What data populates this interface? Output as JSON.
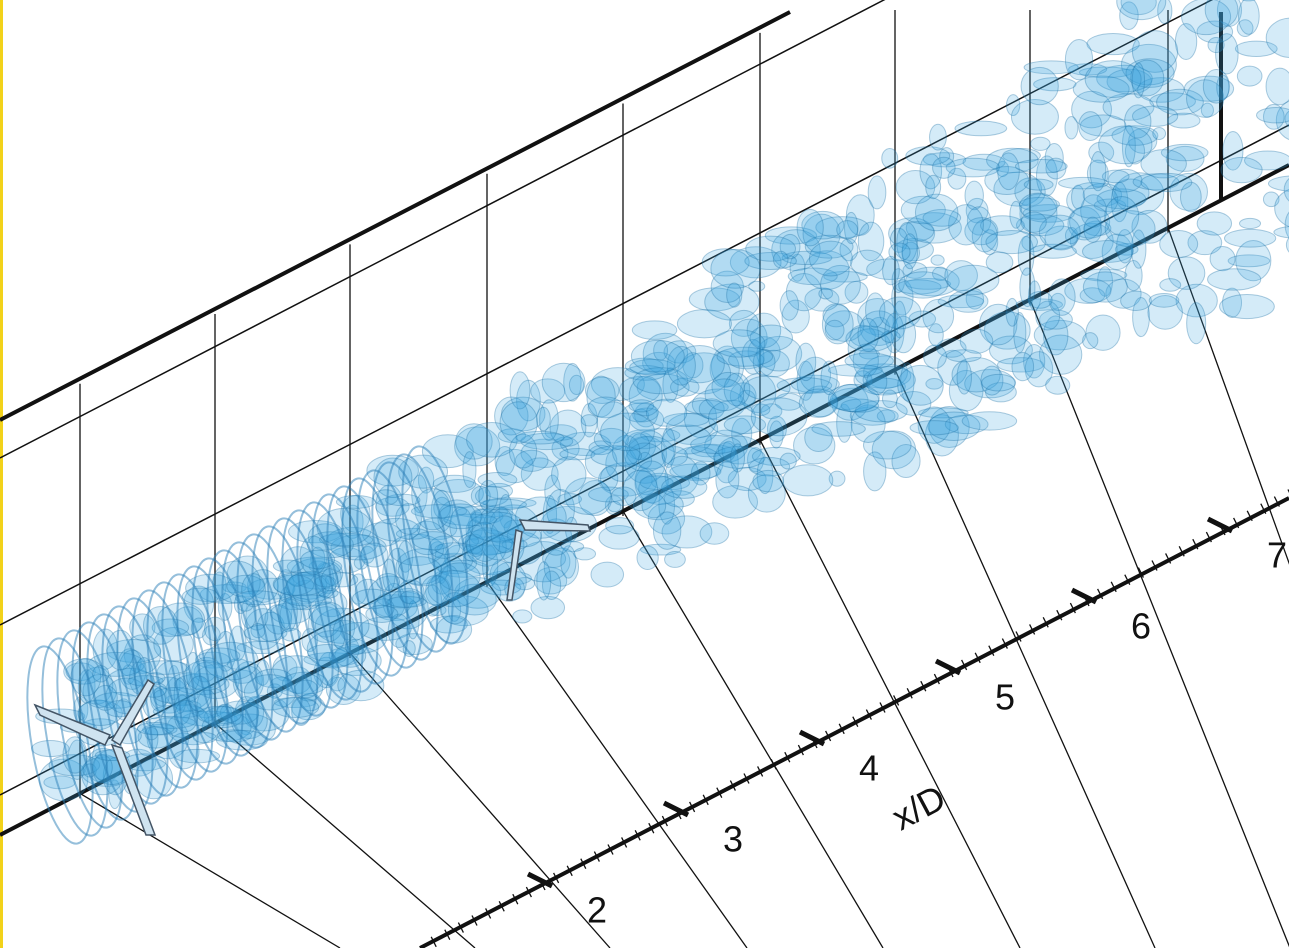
{
  "axis": {
    "label": "x/D",
    "ticks": [
      2,
      3,
      4,
      5,
      6,
      7
    ]
  }
}
